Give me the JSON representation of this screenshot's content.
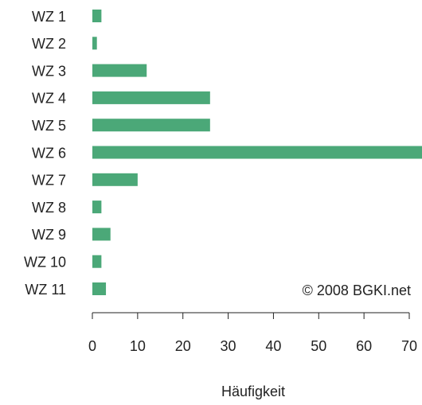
{
  "chart_data": {
    "type": "bar",
    "orientation": "horizontal",
    "categories": [
      "WZ 1",
      "WZ 2",
      "WZ 3",
      "WZ 4",
      "WZ 5",
      "WZ 6",
      "WZ 7",
      "WZ 8",
      "WZ 9",
      "WZ 10",
      "WZ 11"
    ],
    "values": [
      2,
      1,
      12,
      26,
      26,
      73,
      10,
      2,
      4,
      2,
      3
    ],
    "color": "#4ba878",
    "xlim": [
      0,
      70
    ],
    "xticks": [
      0,
      10,
      20,
      30,
      40,
      50,
      60,
      70
    ],
    "xlabel": "Häufigkeit",
    "annotation": "© 2008 BGKI.net"
  }
}
